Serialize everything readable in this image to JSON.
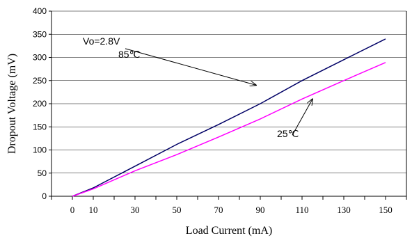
{
  "chart_data": {
    "type": "line",
    "title": "",
    "xlabel": "Load Current (mA)",
    "ylabel": "Dropout Voltage (mV)",
    "xlim": [
      -10,
      160
    ],
    "ylim": [
      0,
      400
    ],
    "x_ticks": [
      0,
      10,
      30,
      50,
      70,
      90,
      110,
      130,
      150
    ],
    "y_ticks": [
      0,
      50,
      100,
      150,
      200,
      250,
      300,
      350,
      400
    ],
    "grid": "horizontal",
    "series": [
      {
        "name": "85℃",
        "color": "#000066",
        "points": [
          [
            0,
            0
          ],
          [
            10,
            18
          ],
          [
            30,
            65
          ],
          [
            50,
            112
          ],
          [
            70,
            155
          ],
          [
            90,
            200
          ],
          [
            110,
            250
          ],
          [
            130,
            295
          ],
          [
            150,
            340
          ]
        ]
      },
      {
        "name": "25℃",
        "color": "#ff00ff",
        "points": [
          [
            0,
            0
          ],
          [
            10,
            16
          ],
          [
            30,
            55
          ],
          [
            50,
            90
          ],
          [
            70,
            128
          ],
          [
            90,
            167
          ],
          [
            110,
            210
          ],
          [
            130,
            250
          ],
          [
            150,
            289
          ]
        ]
      }
    ],
    "annotations": [
      {
        "text": "Vo=2.8V",
        "at": [
          5,
          335
        ]
      },
      {
        "text": "85℃",
        "series": 0,
        "text_at": [
          22,
          307
        ],
        "arrow_to": [
          88,
          240
        ]
      },
      {
        "text": "25℃",
        "series": 1,
        "text_at": [
          98,
          135
        ],
        "arrow_to": [
          115,
          210
        ]
      }
    ]
  }
}
